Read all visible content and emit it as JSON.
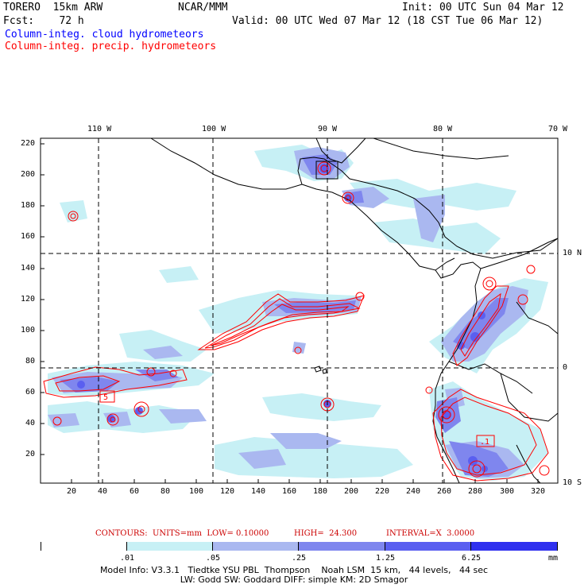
{
  "header": {
    "model": "TORERO  15km ARW",
    "org": "NCAR/MMM",
    "init": "Init: 00 UTC Sun 04 Mar 12",
    "fcst": "Fcst:    72 h",
    "valid": "Valid: 00 UTC Wed 07 Mar 12 (18 CST Tue 06 Mar 12)",
    "field_cloud": "Column-integ. cloud hydrometeors",
    "field_precip": "Column-integ. precip. hydrometeors"
  },
  "map": {
    "top_lon_labels": [
      "110 W",
      "100 W",
      "90 W",
      "80 W",
      "70 W"
    ],
    "right_lat_labels": [
      "10 N",
      "0",
      "10 S"
    ],
    "left_grid_labels": [
      "220",
      "200",
      "180",
      "160",
      "140",
      "120",
      "100",
      "80",
      "60",
      "40",
      "20"
    ],
    "bottom_grid_labels": [
      "20",
      "40",
      "60",
      "80",
      "100",
      "120",
      "140",
      "160",
      "180",
      "200",
      "220",
      "240",
      "260",
      "280",
      "300",
      "320"
    ],
    "contour_box_labels": [
      "5",
      ".1"
    ],
    "colors": {
      "fill_1": "#c7f0f5",
      "fill_2": "#aab8f0",
      "fill_3": "#7f86ee",
      "fill_4": "#5a5ff0",
      "fill_5": "#2f30ef",
      "contour": "#ff0000",
      "coast": "#000000"
    }
  },
  "contour_info": {
    "contours": "CONTOURS:  UNITS=mm  LOW= 0.10000",
    "high": "HIGH=  24.300",
    "interval": "INTERVAL=X  3.0000"
  },
  "colorbar": {
    "labels": [
      ".01",
      ".05",
      ".25",
      "1.25",
      "6.25"
    ],
    "unit": "mm",
    "colors": [
      "#ffffff",
      "#c7f0f5",
      "#aab8f0",
      "#7f86ee",
      "#5a5ff0",
      "#2f30ef"
    ]
  },
  "footer": {
    "line1": "Model Info: V3.3.1   Tiedtke YSU PBL  Thompson    Noah LSM  15 km,   44 levels,   44 sec",
    "line2": "LW: Godd SW: Goddard DIFF: simple KM: 2D Smagor"
  }
}
